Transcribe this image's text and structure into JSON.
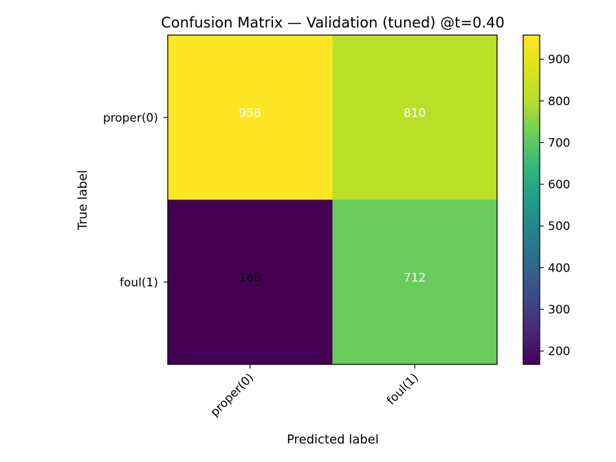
{
  "chart_data": {
    "type": "heatmap",
    "title": "Confusion Matrix — Validation (tuned) @t=0.40",
    "xlabel": "Predicted label",
    "ylabel": "True label",
    "x_categories": [
      "proper(0)",
      "foul(1)"
    ],
    "y_categories": [
      "proper(0)",
      "foul(1)"
    ],
    "values": [
      [
        958,
        810
      ],
      [
        168,
        712
      ]
    ],
    "colormap": "viridis",
    "colorbar": {
      "ticks": [
        200,
        300,
        400,
        500,
        600,
        700,
        800,
        900
      ],
      "range": [
        168,
        958
      ]
    },
    "x_tick_rotation_deg": 45,
    "grid": false
  }
}
